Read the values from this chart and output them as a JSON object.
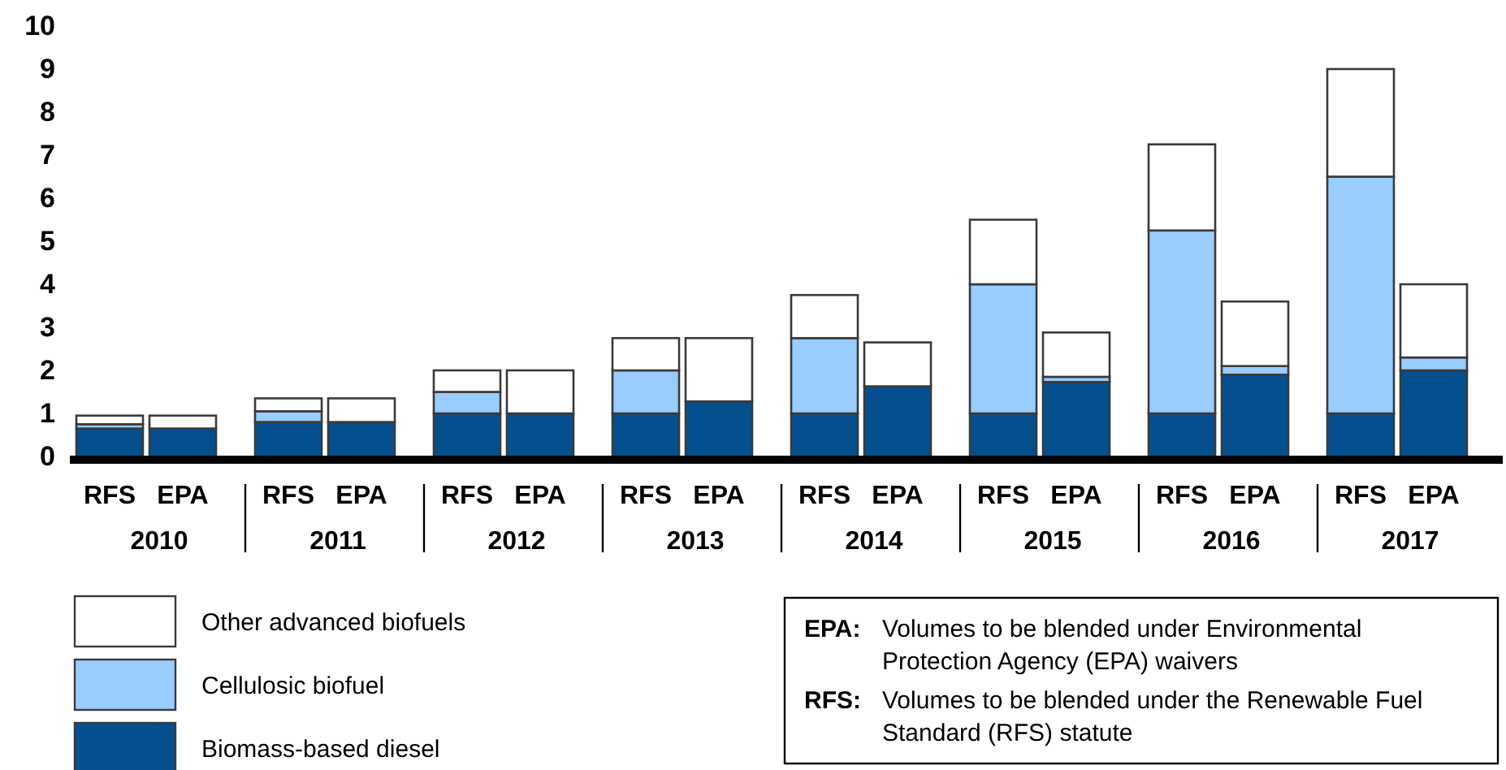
{
  "chart_data": {
    "type": "bar",
    "stacked": true,
    "legend": "bottom left",
    "categories": [
      "RFS",
      "EPA",
      "RFS",
      "EPA",
      "RFS",
      "EPA",
      "RFS",
      "EPA",
      "RFS",
      "EPA",
      "RFS",
      "EPA",
      "RFS",
      "EPA",
      "RFS",
      "EPA"
    ],
    "series": [
      {
        "name": "Biomass-based diesel",
        "color": "#04508f",
        "values": [
          0.65,
          0.65,
          0.8,
          0.8,
          1.0,
          1.0,
          1.0,
          1.28,
          1.0,
          1.63,
          1.0,
          1.73,
          1.0,
          1.9,
          1.0,
          2.0
        ]
      },
      {
        "name": "Cellulosic biofuel",
        "color": "#99ccff",
        "values": [
          0.1,
          0,
          0.25,
          0,
          0.5,
          0,
          1.0,
          0,
          1.75,
          null,
          3.0,
          0.12,
          4.25,
          0.2,
          5.5,
          0.3
        ]
      },
      {
        "name": "Other advanced biofuels",
        "color": "#ffffff",
        "values": [
          0.2,
          0.3,
          0.3,
          0.55,
          0.5,
          1.0,
          0.75,
          1.47,
          1.0,
          1.02,
          1.5,
          1.03,
          2.0,
          1.5,
          2.5,
          1.7
        ]
      }
    ],
    "ylim": [
      0,
      10
    ],
    "yticks": [
      0,
      1,
      2,
      3,
      4,
      5,
      6,
      7,
      8,
      9,
      10
    ],
    "annotations": [
      "2010",
      "2011",
      "2012",
      "2013",
      "2014",
      "2015",
      "2016",
      "2017",
      "EPA: Volumes to be blended under Environmental Protection Agency (EPA) waivers",
      "RFS: Volumes to be blended under the Renewable Fuel Standard (RFS) statute"
    ]
  }
}
